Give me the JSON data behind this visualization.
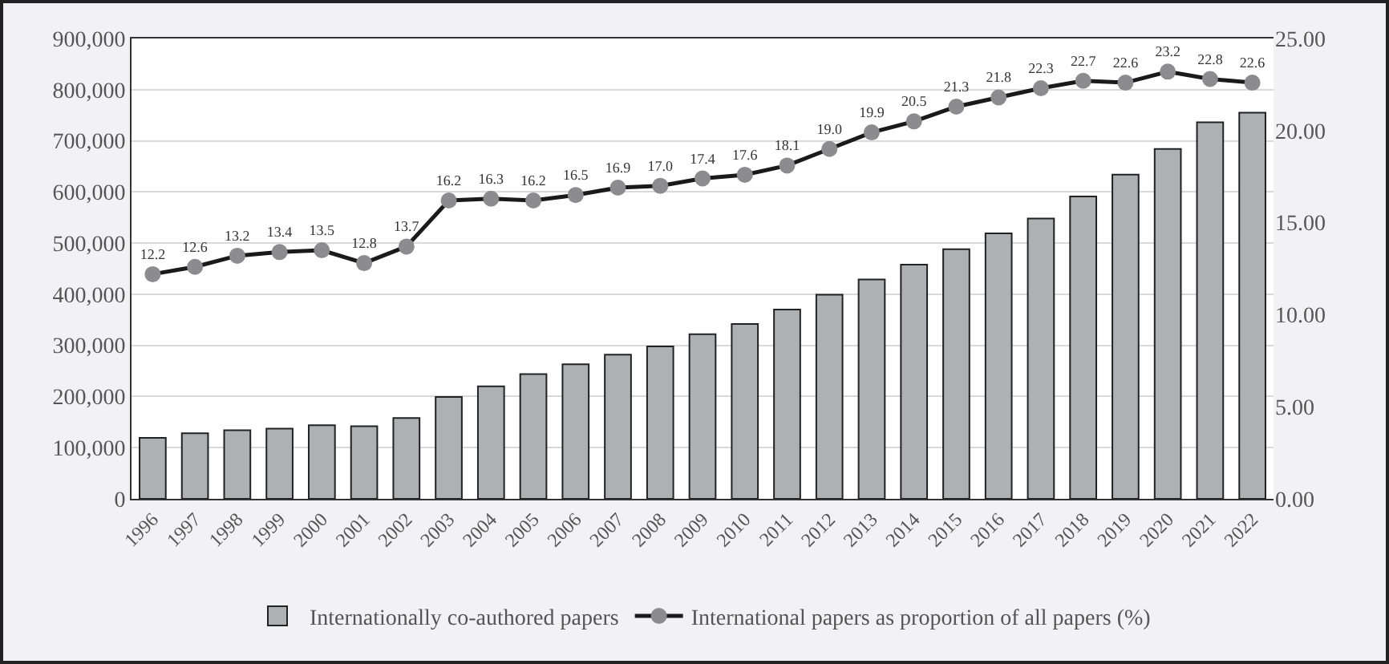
{
  "chart_data": {
    "type": "bar",
    "categories": [
      "1996",
      "1997",
      "1998",
      "1999",
      "2000",
      "2001",
      "2002",
      "2003",
      "2004",
      "2005",
      "2006",
      "2007",
      "2008",
      "2009",
      "2010",
      "2011",
      "2012",
      "2013",
      "2014",
      "2015",
      "2016",
      "2017",
      "2018",
      "2019",
      "2020",
      "2021",
      "2022"
    ],
    "series": [
      {
        "name": "Internationally co-authored papers",
        "color": "#afb0b3",
        "values": [
          119000,
          128000,
          134000,
          137000,
          144000,
          142000,
          158000,
          199000,
          220000,
          244000,
          263000,
          282000,
          298000,
          322000,
          342000,
          370000,
          399000,
          429000,
          458000,
          488000,
          519000,
          548000,
          591000,
          634000,
          684000,
          736000,
          755000
        ]
      },
      {
        "name": "International papers as proportion of all papers (%)",
        "type": "line",
        "axis": "y2",
        "color": "#1a1a1a",
        "marker": "circle",
        "value_labels": [
          "12.2",
          "12.6",
          "13.2",
          "13.4",
          "13.5",
          "12.8",
          "13.7",
          "16.2",
          "16.3",
          "16.2",
          "16.5",
          "16.9",
          "17.0",
          "17.4",
          "17.6",
          "18.1",
          "19.0",
          "19.9",
          "20.5",
          "21.3",
          "21.8",
          "22.3",
          "22.7",
          "22.6",
          "23.2",
          "22.8",
          "22.6"
        ],
        "values": [
          12.2,
          12.6,
          13.2,
          13.4,
          13.5,
          12.8,
          13.7,
          16.2,
          16.3,
          16.2,
          16.5,
          16.9,
          17.0,
          17.4,
          17.6,
          18.1,
          19.0,
          19.9,
          20.5,
          21.3,
          21.8,
          22.3,
          22.7,
          22.6,
          23.2,
          22.8,
          22.6
        ]
      }
    ],
    "ylim": [
      0,
      900000
    ],
    "yticks": [
      {
        "value": 0,
        "label": "0"
      },
      {
        "value": 100000,
        "label": "100,000"
      },
      {
        "value": 200000,
        "label": "200,000"
      },
      {
        "value": 300000,
        "label": "300,000"
      },
      {
        "value": 400000,
        "label": "400,000"
      },
      {
        "value": 500000,
        "label": "500,000"
      },
      {
        "value": 600000,
        "label": "600,000"
      },
      {
        "value": 700000,
        "label": "700,000"
      },
      {
        "value": 800000,
        "label": "800,000"
      },
      {
        "value": 900000,
        "label": "900,000"
      }
    ],
    "y2lim": [
      0,
      25
    ],
    "y2ticks": [
      {
        "value": 0,
        "label": "0.00"
      },
      {
        "value": 5,
        "label": "5.00"
      },
      {
        "value": 10,
        "label": "10.00"
      },
      {
        "value": 15,
        "label": "15.00"
      },
      {
        "value": 20,
        "label": "20.00"
      },
      {
        "value": 25,
        "label": "25.00"
      }
    ],
    "grid": "y",
    "legend": "bottom"
  }
}
